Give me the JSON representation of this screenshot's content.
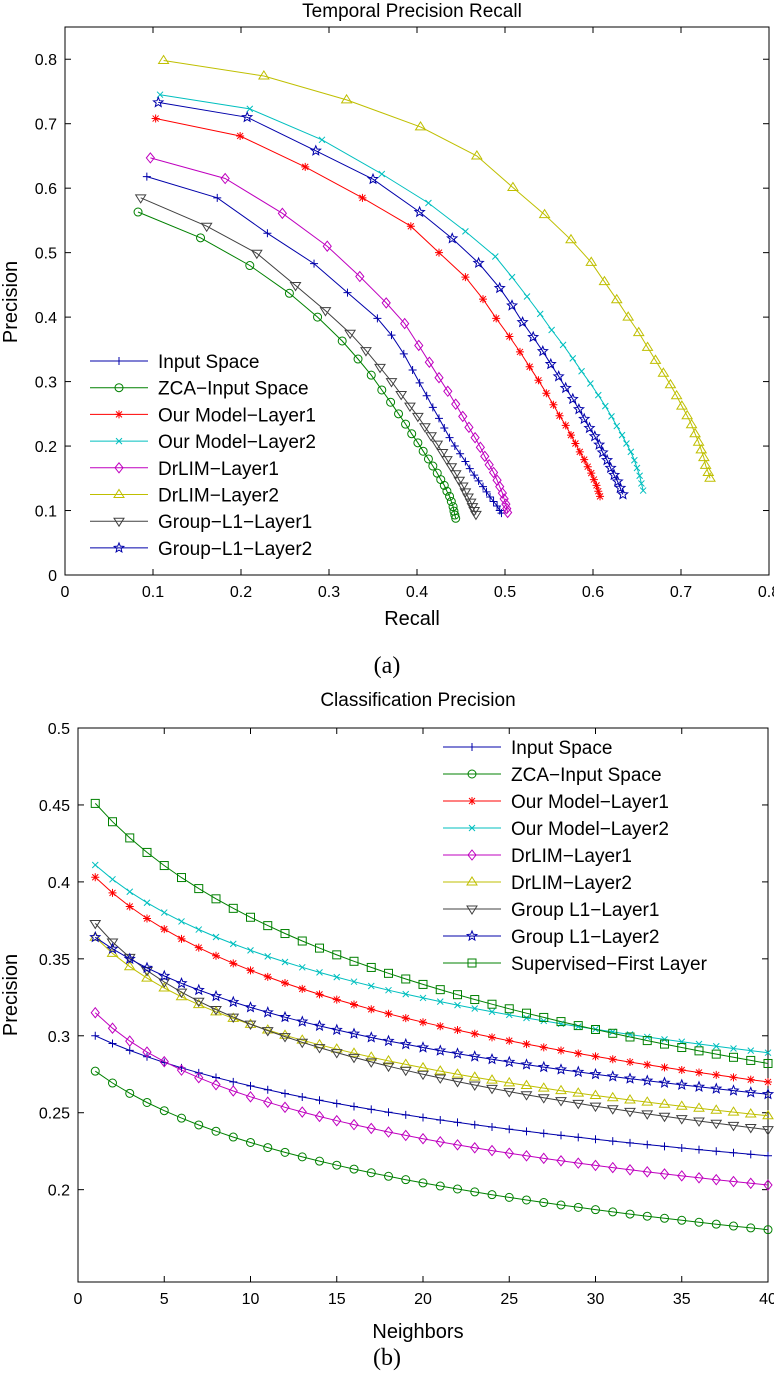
{
  "chart_data": [
    {
      "type": "line",
      "title": "Temporal Precision Recall",
      "xlabel": "Recall",
      "ylabel": "Precision",
      "caption": "(a)",
      "xlim": [
        0,
        0.8
      ],
      "ylim": [
        0,
        0.85
      ],
      "xticks": [
        "0",
        "0.1",
        "0.2",
        "0.3",
        "0.4",
        "0.5",
        "0.6",
        "0.7",
        "0.8"
      ],
      "yticks": [
        "0",
        "0.1",
        "0.2",
        "0.3",
        "0.4",
        "0.5",
        "0.6",
        "0.7",
        "0.8"
      ],
      "legend_position": "bottom-left",
      "series": [
        {
          "name": "Input Space",
          "color": "#0000aa",
          "marker": "plus",
          "points": [
            [
              0.093,
              0.618
            ],
            [
              0.173,
              0.585
            ],
            [
              0.23,
              0.53
            ],
            [
              0.283,
              0.483
            ],
            [
              0.321,
              0.438
            ],
            [
              0.355,
              0.398
            ],
            [
              0.371,
              0.372
            ],
            [
              0.385,
              0.343
            ],
            [
              0.395,
              0.318
            ],
            [
              0.403,
              0.298
            ],
            [
              0.411,
              0.278
            ],
            [
              0.418,
              0.26
            ],
            [
              0.425,
              0.243
            ],
            [
              0.431,
              0.228
            ],
            [
              0.437,
              0.213
            ],
            [
              0.443,
              0.2
            ],
            [
              0.449,
              0.188
            ],
            [
              0.455,
              0.176
            ],
            [
              0.46,
              0.165
            ],
            [
              0.465,
              0.155
            ],
            [
              0.47,
              0.146
            ],
            [
              0.475,
              0.137
            ],
            [
              0.479,
              0.129
            ],
            [
              0.483,
              0.121
            ],
            [
              0.487,
              0.114
            ],
            [
              0.491,
              0.107
            ],
            [
              0.494,
              0.1
            ],
            [
              0.496,
              0.096
            ]
          ]
        },
        {
          "name": "ZCA−Input Space",
          "color": "#008000",
          "marker": "circle",
          "points": [
            [
              0.083,
              0.563
            ],
            [
              0.154,
              0.523
            ],
            [
              0.21,
              0.48
            ],
            [
              0.255,
              0.437
            ],
            [
              0.287,
              0.4
            ],
            [
              0.315,
              0.363
            ],
            [
              0.333,
              0.335
            ],
            [
              0.348,
              0.31
            ],
            [
              0.36,
              0.287
            ],
            [
              0.37,
              0.268
            ],
            [
              0.379,
              0.25
            ],
            [
              0.387,
              0.234
            ],
            [
              0.394,
              0.219
            ],
            [
              0.401,
              0.205
            ],
            [
              0.407,
              0.192
            ],
            [
              0.413,
              0.18
            ],
            [
              0.418,
              0.169
            ],
            [
              0.423,
              0.158
            ],
            [
              0.427,
              0.148
            ],
            [
              0.431,
              0.139
            ],
            [
              0.434,
              0.13
            ],
            [
              0.437,
              0.122
            ],
            [
              0.439,
              0.114
            ],
            [
              0.441,
              0.106
            ],
            [
              0.442,
              0.099
            ],
            [
              0.443,
              0.093
            ],
            [
              0.444,
              0.088
            ]
          ]
        },
        {
          "name": "Our Model−Layer1",
          "color": "#ff0000",
          "marker": "asterisk",
          "points": [
            [
              0.103,
              0.708
            ],
            [
              0.199,
              0.681
            ],
            [
              0.273,
              0.633
            ],
            [
              0.338,
              0.585
            ],
            [
              0.393,
              0.541
            ],
            [
              0.425,
              0.5
            ],
            [
              0.455,
              0.462
            ],
            [
              0.475,
              0.428
            ],
            [
              0.49,
              0.398
            ],
            [
              0.505,
              0.37
            ],
            [
              0.517,
              0.346
            ],
            [
              0.528,
              0.323
            ],
            [
              0.538,
              0.302
            ],
            [
              0.547,
              0.282
            ],
            [
              0.555,
              0.264
            ],
            [
              0.562,
              0.247
            ],
            [
              0.569,
              0.232
            ],
            [
              0.575,
              0.217
            ],
            [
              0.58,
              0.204
            ],
            [
              0.585,
              0.191
            ],
            [
              0.59,
              0.179
            ],
            [
              0.594,
              0.168
            ],
            [
              0.598,
              0.158
            ],
            [
              0.601,
              0.148
            ],
            [
              0.604,
              0.139
            ],
            [
              0.606,
              0.13
            ],
            [
              0.608,
              0.122
            ]
          ]
        },
        {
          "name": "Our Model−Layer2",
          "color": "#00bfbf",
          "marker": "x",
          "points": [
            [
              0.108,
              0.745
            ],
            [
              0.21,
              0.723
            ],
            [
              0.292,
              0.675
            ],
            [
              0.36,
              0.622
            ],
            [
              0.413,
              0.577
            ],
            [
              0.455,
              0.533
            ],
            [
              0.489,
              0.494
            ],
            [
              0.508,
              0.462
            ],
            [
              0.525,
              0.432
            ],
            [
              0.54,
              0.405
            ],
            [
              0.553,
              0.38
            ],
            [
              0.566,
              0.357
            ],
            [
              0.577,
              0.336
            ],
            [
              0.587,
              0.316
            ],
            [
              0.597,
              0.297
            ],
            [
              0.606,
              0.279
            ],
            [
              0.614,
              0.262
            ],
            [
              0.621,
              0.246
            ],
            [
              0.627,
              0.231
            ],
            [
              0.633,
              0.217
            ],
            [
              0.638,
              0.204
            ],
            [
              0.643,
              0.191
            ],
            [
              0.647,
              0.178
            ],
            [
              0.65,
              0.166
            ],
            [
              0.653,
              0.154
            ],
            [
              0.655,
              0.142
            ],
            [
              0.657,
              0.131
            ]
          ]
        },
        {
          "name": "DrLIM−Layer1",
          "color": "#bf00bf",
          "marker": "diamond",
          "points": [
            [
              0.097,
              0.647
            ],
            [
              0.182,
              0.615
            ],
            [
              0.247,
              0.561
            ],
            [
              0.298,
              0.51
            ],
            [
              0.335,
              0.463
            ],
            [
              0.365,
              0.422
            ],
            [
              0.386,
              0.39
            ],
            [
              0.402,
              0.356
            ],
            [
              0.414,
              0.33
            ],
            [
              0.425,
              0.306
            ],
            [
              0.435,
              0.285
            ],
            [
              0.444,
              0.265
            ],
            [
              0.452,
              0.246
            ],
            [
              0.459,
              0.229
            ],
            [
              0.466,
              0.213
            ],
            [
              0.472,
              0.198
            ],
            [
              0.477,
              0.184
            ],
            [
              0.482,
              0.171
            ],
            [
              0.487,
              0.159
            ],
            [
              0.491,
              0.147
            ],
            [
              0.494,
              0.137
            ],
            [
              0.497,
              0.127
            ],
            [
              0.499,
              0.118
            ],
            [
              0.501,
              0.11
            ],
            [
              0.502,
              0.103
            ],
            [
              0.503,
              0.097
            ]
          ]
        },
        {
          "name": "DrLIM−Layer2",
          "color": "#bfbf00",
          "marker": "triangle-up",
          "points": [
            [
              0.112,
              0.798
            ],
            [
              0.226,
              0.774
            ],
            [
              0.32,
              0.737
            ],
            [
              0.404,
              0.695
            ],
            [
              0.468,
              0.65
            ],
            [
              0.509,
              0.601
            ],
            [
              0.545,
              0.559
            ],
            [
              0.575,
              0.52
            ],
            [
              0.598,
              0.485
            ],
            [
              0.613,
              0.455
            ],
            [
              0.627,
              0.427
            ],
            [
              0.64,
              0.4
            ],
            [
              0.652,
              0.376
            ],
            [
              0.662,
              0.353
            ],
            [
              0.671,
              0.333
            ],
            [
              0.68,
              0.313
            ],
            [
              0.688,
              0.295
            ],
            [
              0.695,
              0.278
            ],
            [
              0.701,
              0.262
            ],
            [
              0.707,
              0.247
            ],
            [
              0.712,
              0.233
            ],
            [
              0.716,
              0.219
            ],
            [
              0.72,
              0.206
            ],
            [
              0.723,
              0.194
            ],
            [
              0.726,
              0.182
            ],
            [
              0.728,
              0.17
            ],
            [
              0.731,
              0.159
            ],
            [
              0.733,
              0.15
            ]
          ]
        },
        {
          "name": "Group−L1−Layer1",
          "color": "#404040",
          "marker": "triangle-down",
          "points": [
            [
              0.086,
              0.585
            ],
            [
              0.161,
              0.541
            ],
            [
              0.218,
              0.499
            ],
            [
              0.262,
              0.449
            ],
            [
              0.296,
              0.41
            ],
            [
              0.324,
              0.375
            ],
            [
              0.342,
              0.348
            ],
            [
              0.358,
              0.322
            ],
            [
              0.371,
              0.3
            ],
            [
              0.382,
              0.28
            ],
            [
              0.392,
              0.262
            ],
            [
              0.401,
              0.246
            ],
            [
              0.409,
              0.23
            ],
            [
              0.416,
              0.216
            ],
            [
              0.423,
              0.203
            ],
            [
              0.429,
              0.19
            ],
            [
              0.434,
              0.179
            ],
            [
              0.439,
              0.168
            ],
            [
              0.444,
              0.157
            ],
            [
              0.448,
              0.147
            ],
            [
              0.452,
              0.138
            ],
            [
              0.455,
              0.129
            ],
            [
              0.458,
              0.121
            ],
            [
              0.461,
              0.113
            ],
            [
              0.463,
              0.106
            ],
            [
              0.465,
              0.1
            ],
            [
              0.467,
              0.094
            ]
          ]
        },
        {
          "name": "Group−L1−Layer2",
          "color": "#0000aa",
          "marker": "star",
          "points": [
            [
              0.106,
              0.733
            ],
            [
              0.207,
              0.71
            ],
            [
              0.285,
              0.658
            ],
            [
              0.35,
              0.614
            ],
            [
              0.403,
              0.563
            ],
            [
              0.44,
              0.522
            ],
            [
              0.47,
              0.484
            ],
            [
              0.494,
              0.445
            ],
            [
              0.508,
              0.418
            ],
            [
              0.52,
              0.392
            ],
            [
              0.532,
              0.369
            ],
            [
              0.543,
              0.347
            ],
            [
              0.552,
              0.327
            ],
            [
              0.561,
              0.308
            ],
            [
              0.569,
              0.29
            ],
            [
              0.577,
              0.273
            ],
            [
              0.584,
              0.257
            ],
            [
              0.59,
              0.242
            ],
            [
              0.596,
              0.228
            ],
            [
              0.602,
              0.215
            ],
            [
              0.607,
              0.202
            ],
            [
              0.611,
              0.19
            ],
            [
              0.616,
              0.178
            ],
            [
              0.62,
              0.166
            ],
            [
              0.624,
              0.155
            ],
            [
              0.628,
              0.145
            ],
            [
              0.631,
              0.135
            ],
            [
              0.634,
              0.125
            ]
          ]
        }
      ]
    },
    {
      "type": "line",
      "title": "Classification Precision",
      "xlabel": "Neighbors",
      "ylabel": "Precision",
      "caption": "(b)",
      "xlim": [
        0,
        40
      ],
      "ylim": [
        0.14,
        0.5
      ],
      "xticks": [
        "0",
        "5",
        "10",
        "15",
        "20",
        "25",
        "30",
        "35",
        "40"
      ],
      "yticks": [
        "0.2",
        "0.25",
        "0.3",
        "0.35",
        "0.4",
        "0.45",
        "0.5"
      ],
      "legend_position": "top-right",
      "series": [
        {
          "name": "Input Space",
          "color": "#0000aa",
          "marker": "plus",
          "start": 0.3,
          "end": 0.222,
          "shape": 4.5
        },
        {
          "name": "ZCA−Input Space",
          "color": "#008000",
          "marker": "circle",
          "start": 0.277,
          "end": 0.174,
          "shape": 6.2
        },
        {
          "name": "Our Model−Layer1",
          "color": "#ff0000",
          "marker": "asterisk",
          "start": 0.403,
          "end": 0.27,
          "shape": 6.5
        },
        {
          "name": "Our Model−Layer2",
          "color": "#00bfbf",
          "marker": "x",
          "start": 0.411,
          "end": 0.289,
          "shape": 6.5
        },
        {
          "name": "DrLIM−Layer1",
          "color": "#bf00bf",
          "marker": "diamond",
          "start": 0.315,
          "end": 0.203,
          "shape": 9.0
        },
        {
          "name": "DrLIM−Layer2",
          "color": "#bfbf00",
          "marker": "triangle-up",
          "start": 0.364,
          "end": 0.248,
          "shape": 9.0
        },
        {
          "name": "Group L1−Layer1",
          "color": "#404040",
          "marker": "triangle-down",
          "start": 0.373,
          "end": 0.239,
          "shape": 9.0
        },
        {
          "name": "Group L1−Layer2",
          "color": "#0000aa",
          "marker": "star",
          "start": 0.364,
          "end": 0.262,
          "shape": 6.0
        },
        {
          "name": "Supervised−First Layer",
          "color": "#008000",
          "marker": "square",
          "start": 0.451,
          "end": 0.282,
          "shape": 5.5
        }
      ]
    }
  ]
}
